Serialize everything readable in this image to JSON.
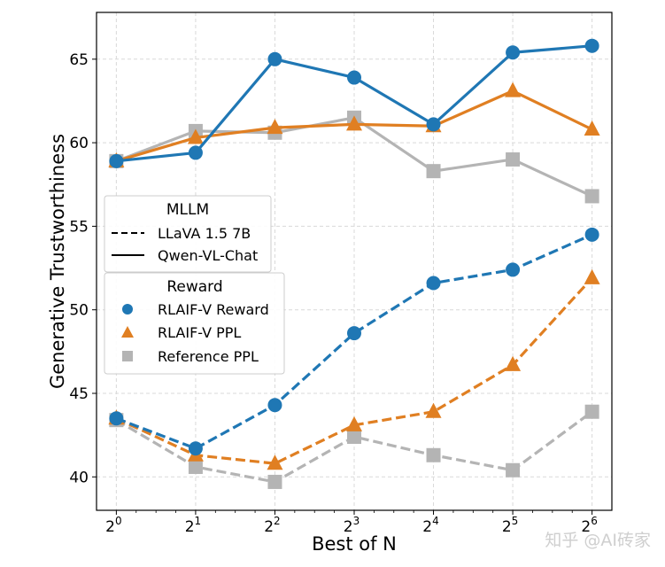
{
  "watermark": "知乎 @AI砖家",
  "chart_data": {
    "type": "line",
    "title": "",
    "xlabel": "Best of N",
    "ylabel": "Generative Trustworthiness",
    "x": [
      0,
      1,
      2,
      3,
      4,
      5,
      6
    ],
    "x_tick_base": "2",
    "x_tick_exponents": [
      "0",
      "1",
      "2",
      "3",
      "4",
      "5",
      "6"
    ],
    "xlim": [
      -0.25,
      6.25
    ],
    "ylim": [
      38,
      67.8
    ],
    "y_ticks": [
      40,
      45,
      50,
      55,
      60,
      65
    ],
    "grid": true,
    "legend_mllm": {
      "title": "MLLM",
      "entries": [
        {
          "label": "LLaVA 1.5 7B",
          "style": "dashed"
        },
        {
          "label": "Qwen-VL-Chat",
          "style": "solid"
        }
      ]
    },
    "legend_reward": {
      "title": "Reward",
      "entries": [
        {
          "label": "RLAIF-V Reward",
          "marker": "circle",
          "color": "#1f77b4"
        },
        {
          "label": "RLAIF-V PPL",
          "marker": "triangle",
          "color": "#e07f22"
        },
        {
          "label": "Reference PPL",
          "marker": "square",
          "color": "#b4b4b4"
        }
      ]
    },
    "series": [
      {
        "name": "Reference PPL / Qwen-VL-Chat",
        "marker": "square",
        "color": "#b4b4b4",
        "style": "solid",
        "values": [
          58.9,
          60.7,
          60.6,
          61.5,
          58.3,
          59.0,
          56.8
        ]
      },
      {
        "name": "Reference PPL / LLaVA 1.5 7B",
        "marker": "square",
        "color": "#b4b4b4",
        "style": "dashed",
        "values": [
          43.4,
          40.6,
          39.7,
          42.4,
          41.3,
          40.4,
          43.9
        ]
      },
      {
        "name": "RLAIF-V PPL / Qwen-VL-Chat",
        "marker": "triangle",
        "color": "#e07f22",
        "style": "solid",
        "values": [
          58.9,
          60.3,
          60.9,
          61.1,
          61.0,
          63.1,
          60.8
        ]
      },
      {
        "name": "RLAIF-V PPL / LLaVA 1.5 7B",
        "marker": "triangle",
        "color": "#e07f22",
        "style": "dashed",
        "values": [
          43.5,
          41.3,
          40.8,
          43.1,
          43.9,
          46.7,
          51.9
        ]
      },
      {
        "name": "RLAIF-V Reward / Qwen-VL-Chat",
        "marker": "circle",
        "color": "#1f77b4",
        "style": "solid",
        "values": [
          58.9,
          59.4,
          65.0,
          63.9,
          61.1,
          65.4,
          65.8
        ]
      },
      {
        "name": "RLAIF-V Reward / LLaVA 1.5 7B",
        "marker": "circle",
        "color": "#1f77b4",
        "style": "dashed",
        "values": [
          43.5,
          41.7,
          44.3,
          48.6,
          51.6,
          52.4,
          54.5
        ]
      }
    ]
  }
}
